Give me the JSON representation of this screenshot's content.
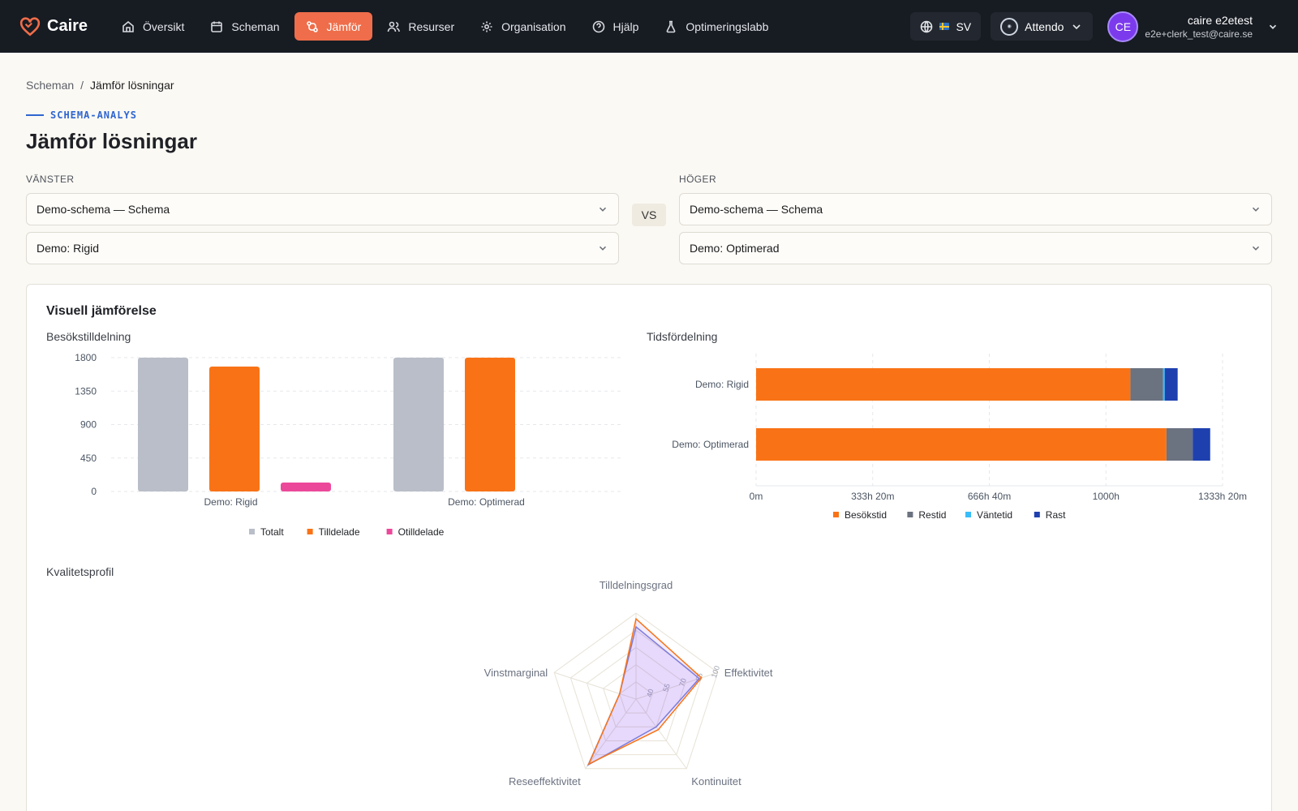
{
  "nav": {
    "brand": "Caire",
    "items": [
      {
        "label": "Översikt",
        "icon": "home-icon"
      },
      {
        "label": "Scheman",
        "icon": "calendar-icon"
      },
      {
        "label": "Jämför",
        "icon": "compare-icon",
        "active": true
      },
      {
        "label": "Resurser",
        "icon": "users-icon"
      },
      {
        "label": "Organisation",
        "icon": "gear-icon"
      },
      {
        "label": "Hjälp",
        "icon": "help-icon"
      },
      {
        "label": "Optimeringslabb",
        "icon": "flask-icon"
      }
    ],
    "language": "SV",
    "org": "Attendo",
    "user": {
      "initials": "CE",
      "name": "caire e2etest",
      "email": "e2e+clerk_test@caire.se"
    }
  },
  "breadcrumb": {
    "parent": "Scheman",
    "separator": "/",
    "current": "Jämför lösningar"
  },
  "page": {
    "eyebrow": "SCHEMA-ANALYS",
    "title": "Jämför lösningar"
  },
  "left": {
    "label": "VÄNSTER",
    "schedule": "Demo-schema — Schema",
    "solution": "Demo: Rigid"
  },
  "right": {
    "label": "HÖGER",
    "schedule": "Demo-schema — Schema",
    "solution": "Demo: Optimerad"
  },
  "vs_label": "VS",
  "visual": {
    "title": "Visuell jämförelse"
  },
  "colors": {
    "accent": "#ef6d4a",
    "orange": "#f97316",
    "gray": "#b9bec8",
    "pink": "#ec4899",
    "slate": "#6b7280",
    "sky": "#38bdf8",
    "blue": "#1e40af",
    "purple": "#7c3aed"
  },
  "chart_data": [
    {
      "type": "bar",
      "title": "Besökstilldelning",
      "categories": [
        "Demo: Rigid",
        "Demo: Optimerad"
      ],
      "series": [
        {
          "name": "Totalt",
          "values": [
            1800,
            1800
          ],
          "color": "#b9bec8"
        },
        {
          "name": "Tilldelade",
          "values": [
            1680,
            1800
          ],
          "color": "#f97316"
        },
        {
          "name": "Otilldelade",
          "values": [
            120,
            0
          ],
          "color": "#ec4899"
        }
      ],
      "yticks": [
        "0",
        "450",
        "900",
        "1350",
        "1800"
      ],
      "ylim": [
        0,
        1800
      ],
      "legend": "bottom"
    },
    {
      "type": "bar",
      "orientation": "horizontal",
      "stacked": true,
      "title": "Tidsfördelning",
      "categories": [
        "Demo: Rigid",
        "Demo: Optimerad"
      ],
      "series": [
        {
          "name": "Besökstid",
          "values": [
            1070,
            1173
          ],
          "color": "#f97316"
        },
        {
          "name": "Restid",
          "values": [
            93,
            75
          ],
          "color": "#6b7280"
        },
        {
          "name": "Väntetid",
          "values": [
            5,
            0
          ],
          "color": "#38bdf8"
        },
        {
          "name": "Rast",
          "values": [
            37,
            50
          ],
          "color": "#1e40af"
        }
      ],
      "xticks": [
        "0m",
        "333h 20m",
        "666h 40m",
        "1000h",
        "1333h 20m"
      ],
      "xlim": [
        0,
        1333.33
      ],
      "legend": "bottom"
    },
    {
      "type": "radar",
      "title": "Kvalitetsprofil",
      "axes": [
        "Tilldelningsgrad",
        "Effektivitet",
        "Kontinuitet",
        "Reseeffektivitet",
        "Vinstmarginal"
      ],
      "rticks": [
        "40",
        "55",
        "70",
        "85",
        "100"
      ],
      "rlim": [
        25,
        100
      ],
      "series": [
        {
          "name": "Demo: Rigid",
          "values": [
            88,
            83,
            55,
            96,
            40
          ],
          "color": "#7c83d9"
        },
        {
          "name": "Demo: Optimerad",
          "values": [
            95,
            85,
            58,
            95,
            40
          ],
          "color": "#f97316"
        }
      ]
    }
  ]
}
